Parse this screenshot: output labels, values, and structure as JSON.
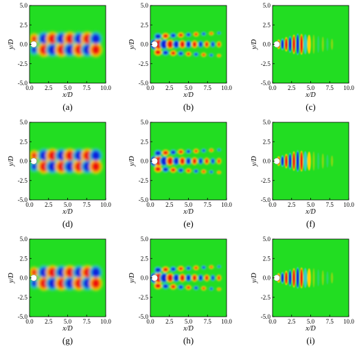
{
  "figure": {
    "panels": [
      {
        "caption": "(a)",
        "mode": "low"
      },
      {
        "caption": "(b)",
        "mode": "mid"
      },
      {
        "caption": "(c)",
        "mode": "high"
      },
      {
        "caption": "(d)",
        "mode": "low"
      },
      {
        "caption": "(e)",
        "mode": "mid"
      },
      {
        "caption": "(f)",
        "mode": "high"
      },
      {
        "caption": "(g)",
        "mode": "low"
      },
      {
        "caption": "(h)",
        "mode": "mid"
      },
      {
        "caption": "(i)",
        "mode": "high"
      }
    ],
    "x_ticks": [
      "0.0",
      "2.5",
      "5.0",
      "7.5",
      "10.0"
    ],
    "y_ticks": [
      "5.0",
      "2.5",
      "0.0",
      "-2.5",
      "-5.0"
    ],
    "x_label": "x/D",
    "y_label": "y/D",
    "colors": {
      "background": "#22dd22",
      "positive": "#ee1111",
      "positive_light": "#ffd400",
      "negative": "#1122dd",
      "negative_light": "#33cccc",
      "cylinder": "#ffffff"
    }
  }
}
